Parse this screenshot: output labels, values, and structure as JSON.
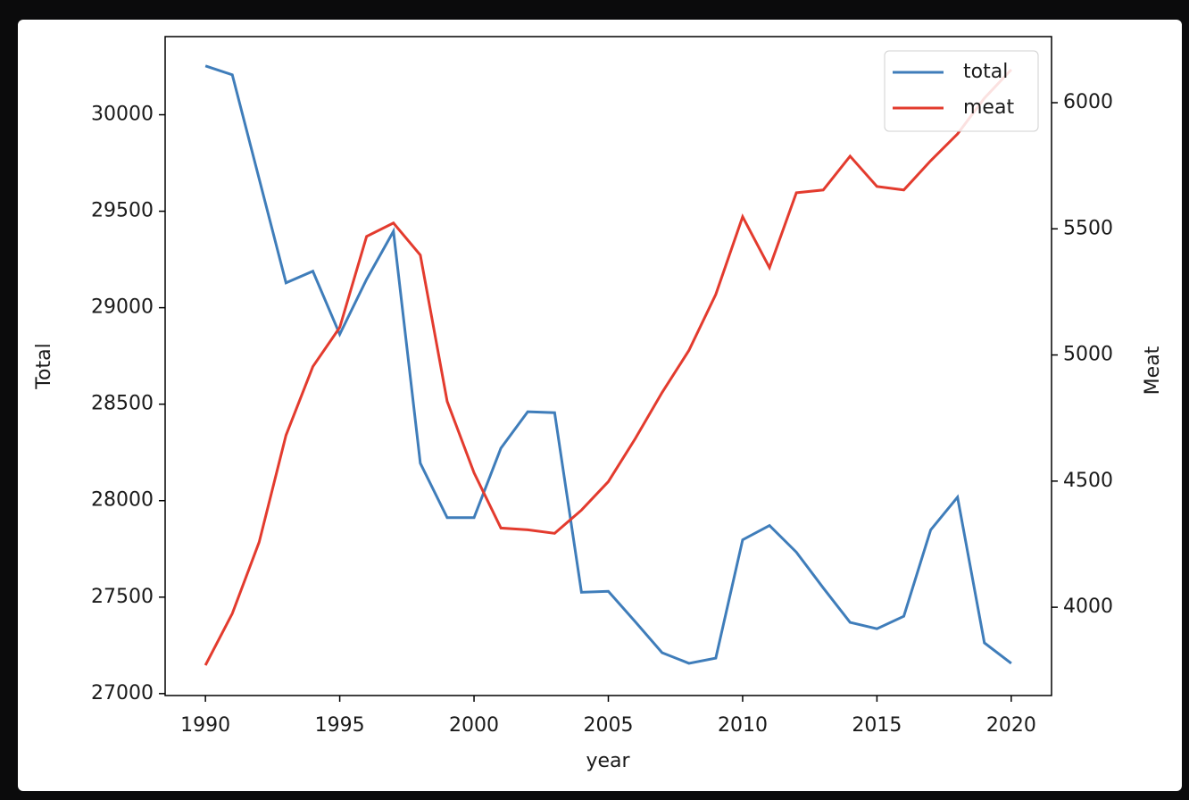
{
  "chart_data": {
    "type": "line",
    "xlabel": "year",
    "ylabel": "Total",
    "y2label": "Meat",
    "x": [
      1990,
      1991,
      1992,
      1993,
      1994,
      1995,
      1996,
      1997,
      1998,
      1999,
      2000,
      2001,
      2002,
      2003,
      2004,
      2005,
      2006,
      2007,
      2008,
      2009,
      2010,
      2011,
      2012,
      2013,
      2014,
      2015,
      2016,
      2017,
      2018,
      2019,
      2020
    ],
    "series": [
      {
        "name": "total",
        "color": "#3f7dba",
        "axis": "y",
        "values": [
          30253,
          30207,
          29668,
          29129,
          29189,
          28862,
          29147,
          29396,
          28194,
          27912,
          27912,
          28272,
          28461,
          28456,
          27525,
          27530,
          27373,
          27212,
          27157,
          27184,
          27797,
          27871,
          27733,
          27548,
          27369,
          27336,
          27401,
          27848,
          28018,
          27263,
          27157
        ]
      },
      {
        "name": "meat",
        "color": "#e33b2e",
        "axis": "y2",
        "values": [
          3770,
          3975,
          4258,
          4682,
          4954,
          5109,
          5470,
          5523,
          5396,
          4816,
          4533,
          4314,
          4307,
          4293,
          4385,
          4498,
          4668,
          4851,
          5018,
          5240,
          5548,
          5346,
          5643,
          5654,
          5788,
          5668,
          5654,
          5770,
          5876,
          6018,
          6131
        ]
      }
    ],
    "xlim": [
      1988.5,
      2021.5
    ],
    "xticks": [
      1990,
      1995,
      2000,
      2005,
      2010,
      2015,
      2020
    ],
    "ylim": [
      26990,
      30405
    ],
    "yticks": [
      27000,
      27500,
      28000,
      28500,
      29000,
      29500,
      30000
    ],
    "y2lim": [
      3650,
      6262
    ],
    "y2ticks": [
      4000,
      4500,
      5000,
      5500,
      6000
    ],
    "grid": false,
    "legend": "upper right"
  }
}
